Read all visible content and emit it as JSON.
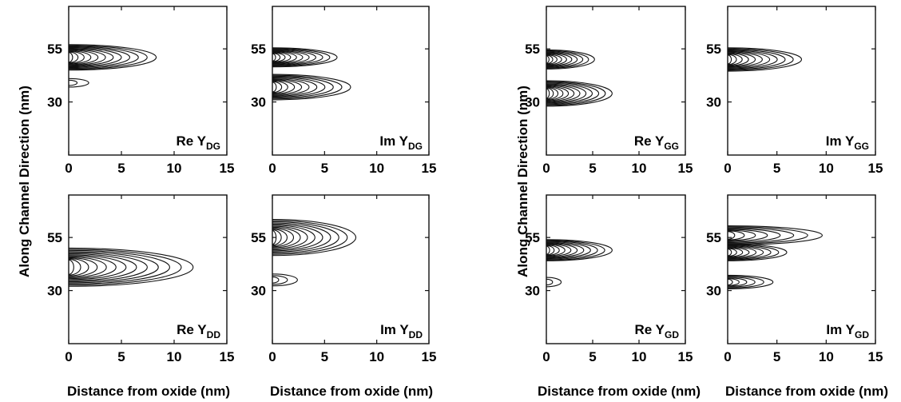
{
  "figure": {
    "ylabel": "Along Channel Direction (nm)",
    "xlabel": "Distance from oxide (nm)"
  },
  "colors": {
    "line": "#111111",
    "background": "#ffffff"
  },
  "chart_data": [
    {
      "type": "contour",
      "label_main": "Re Y",
      "label_sub": "DG",
      "xlim": [
        0,
        15
      ],
      "xticks": [
        0,
        5,
        10,
        15
      ],
      "yticks": [
        30,
        55
      ],
      "lobes": [
        {
          "y_center": 51,
          "x_extent": 8.3,
          "half_height": 6,
          "levels": 12
        },
        {
          "y_center": 39,
          "x_extent": 1.9,
          "half_height": 2,
          "levels": 2
        }
      ]
    },
    {
      "type": "contour",
      "label_main": "Im Y",
      "label_sub": "DG",
      "xlim": [
        0,
        15
      ],
      "xticks": [
        0,
        5,
        10,
        15
      ],
      "yticks": [
        30,
        55
      ],
      "lobes": [
        {
          "y_center": 51,
          "x_extent": 6.2,
          "half_height": 4.5,
          "levels": 11
        },
        {
          "y_center": 37,
          "x_extent": 7.5,
          "half_height": 6,
          "levels": 11
        }
      ]
    },
    {
      "type": "contour",
      "label_main": "Re Y",
      "label_sub": "GG",
      "xlim": [
        0,
        15
      ],
      "xticks": [
        0,
        5,
        10,
        15
      ],
      "yticks": [
        30,
        55
      ],
      "lobes": [
        {
          "y_center": 50,
          "x_extent": 5.2,
          "half_height": 4.5,
          "levels": 10
        },
        {
          "y_center": 34,
          "x_extent": 7.1,
          "half_height": 6,
          "levels": 12
        }
      ]
    },
    {
      "type": "contour",
      "label_main": "Im Y",
      "label_sub": "GG",
      "xlim": [
        0,
        15
      ],
      "xticks": [
        0,
        5,
        10,
        15
      ],
      "yticks": [
        30,
        55
      ],
      "lobes": [
        {
          "y_center": 50,
          "x_extent": 7.5,
          "half_height": 5.5,
          "levels": 11
        }
      ]
    },
    {
      "type": "contour",
      "label_main": "Re Y",
      "label_sub": "DD",
      "xlim": [
        0,
        15
      ],
      "xticks": [
        0,
        5,
        10,
        15
      ],
      "yticks": [
        30,
        55
      ],
      "lobes": [
        {
          "y_center": 41,
          "x_extent": 11.8,
          "half_height": 9,
          "levels": 13
        }
      ]
    },
    {
      "type": "contour",
      "label_main": "Im Y",
      "label_sub": "DD",
      "xlim": [
        0,
        15
      ],
      "xticks": [
        0,
        5,
        10,
        15
      ],
      "yticks": [
        30,
        55
      ],
      "lobes": [
        {
          "y_center": 55,
          "x_extent": 8.0,
          "half_height": 8.5,
          "levels": 12
        },
        {
          "y_center": 35,
          "x_extent": 2.4,
          "half_height": 2.8,
          "levels": 3
        }
      ]
    },
    {
      "type": "contour",
      "label_main": "Re Y",
      "label_sub": "GD",
      "xlim": [
        0,
        15
      ],
      "xticks": [
        0,
        5,
        10,
        15
      ],
      "yticks": [
        30,
        55
      ],
      "lobes": [
        {
          "y_center": 49,
          "x_extent": 7.1,
          "half_height": 5,
          "levels": 11
        },
        {
          "y_center": 34,
          "x_extent": 1.6,
          "half_height": 2.2,
          "levels": 2
        }
      ]
    },
    {
      "type": "contour",
      "label_main": "Im Y",
      "label_sub": "GD",
      "xlim": [
        0,
        15
      ],
      "xticks": [
        0,
        5,
        10,
        15
      ],
      "yticks": [
        30,
        55
      ],
      "lobes": [
        {
          "y_center": 56,
          "x_extent": 9.6,
          "half_height": 4.5,
          "levels": 8
        },
        {
          "y_center": 48,
          "x_extent": 6.0,
          "half_height": 4,
          "levels": 9
        },
        {
          "y_center": 34,
          "x_extent": 4.6,
          "half_height": 3.2,
          "levels": 6
        }
      ]
    }
  ]
}
